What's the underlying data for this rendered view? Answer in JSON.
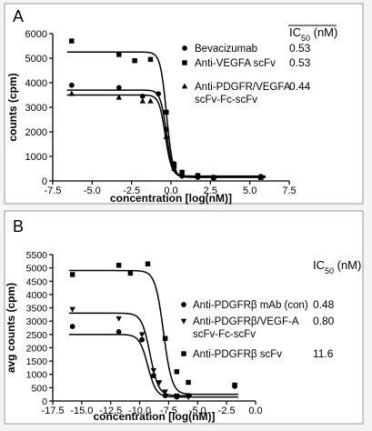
{
  "chart_data": [
    {
      "type": "scatter",
      "panel_label": "A",
      "xlabel": "concentration [log(nM)]",
      "ylabel": "counts (cpm)",
      "xlim": [
        -7.5,
        7.5
      ],
      "ylim": [
        0,
        6000
      ],
      "xticks": [
        -7.5,
        -5.0,
        -2.5,
        0.0,
        2.5,
        5.0,
        7.5
      ],
      "xtick_labels": [
        "-7.5",
        "-5.0",
        "-2.5",
        "0.0",
        "2.5",
        "5.0",
        "7.5"
      ],
      "yticks": [
        0,
        1000,
        2000,
        3000,
        4000,
        5000,
        6000
      ],
      "ytick_labels": [
        "0",
        "1000",
        "2000",
        "3000",
        "4000",
        "5000",
        "6000"
      ],
      "ic50_header": "IC",
      "ic50_sub": "50",
      "ic50_unit": " (nM)",
      "legend_placement": "top-right",
      "grid": false,
      "series": [
        {
          "name": "Bevacizumab",
          "legend_lines": [
            "Bevacizumab"
          ],
          "ic50": "0.53",
          "marker": "circle",
          "fit": {
            "top": 3700,
            "bottom": 150,
            "logic50": -0.28,
            "hill": 2.2
          },
          "x": [
            -6.3,
            -3.3,
            -1.8,
            -0.8,
            -0.3,
            0.2,
            0.7,
            1.7,
            2.7,
            5.7
          ],
          "y": [
            3900,
            3800,
            3450,
            3550,
            2100,
            700,
            200,
            150,
            120,
            180
          ]
        },
        {
          "name": "Anti-VEGFA scFv",
          "legend_lines": [
            "Anti-VEGFA scFv"
          ],
          "ic50": "0.53",
          "marker": "square",
          "fit": {
            "top": 5250,
            "bottom": 150,
            "logic50": -0.28,
            "hill": 2.2
          },
          "x": [
            -6.3,
            -3.3,
            -2.3,
            -1.3,
            -0.3,
            0.2,
            0.7,
            1.7,
            2.7,
            5.7
          ],
          "y": [
            5700,
            5150,
            4900,
            4950,
            2800,
            600,
            350,
            220,
            140,
            140
          ]
        },
        {
          "name": "Anti-PDGFR/VEGFA scFv-Fc-scFv",
          "legend_lines": [
            "Anti-PDGFR/VEGFA",
            "scFv-Fc-scFv"
          ],
          "ic50": "0.44",
          "marker": "triangle-up",
          "fit": {
            "top": 3500,
            "bottom": 200,
            "logic50": -0.36,
            "hill": 2.2
          },
          "x": [
            -6.3,
            -3.3,
            -1.8,
            -1.3,
            -0.3,
            0.2,
            0.7,
            1.7,
            2.7,
            5.7
          ],
          "y": [
            3550,
            3400,
            3250,
            3250,
            1800,
            500,
            350,
            200,
            150,
            150
          ]
        }
      ]
    },
    {
      "type": "scatter",
      "panel_label": "B",
      "xlabel": "concentration [log(nM)]",
      "ylabel": "avg counts (cpm)",
      "xlim": [
        -17.5,
        0.0
      ],
      "ylim": [
        0,
        5500
      ],
      "xticks": [
        -17.5,
        -15.0,
        -12.5,
        -10.0,
        -7.5,
        -5.0,
        -2.5,
        0.0
      ],
      "xtick_labels": [
        "-17.5",
        "-15.0",
        "-12.5",
        "-10.0",
        "-7.5",
        "-5.0",
        "-2.5",
        "0.0"
      ],
      "yticks": [
        0,
        500,
        1000,
        1500,
        2000,
        2500,
        3000,
        3500,
        4000,
        4500,
        5000,
        5500
      ],
      "ytick_labels": [
        "0",
        "500",
        "1000",
        "1500",
        "2000",
        "2500",
        "3000",
        "3500",
        "4000",
        "4500",
        "5000",
        "5500"
      ],
      "ic50_header": "IC",
      "ic50_sub": "50",
      "ic50_unit": " (nM)",
      "legend_placement": "right",
      "grid": false,
      "series": [
        {
          "name": "Anti-PDGFRβ mAb (con)",
          "legend_lines": [
            "Anti-PDGFRβ mAb (con)"
          ],
          "ic50": "0.48",
          "marker": "circle",
          "fit": {
            "top": 2500,
            "bottom": 150,
            "logic50": -9.3,
            "hill": 1.2
          },
          "x": [
            -15.8,
            -11.8,
            -9.8,
            -8.8,
            -7.8,
            -6.8,
            -5.8,
            -1.8
          ],
          "y": [
            2800,
            2600,
            2300,
            950,
            200,
            150,
            200,
            550
          ]
        },
        {
          "name": "Anti-PDGFRβ/VEGF-A scFv-Fc-scFv",
          "legend_lines": [
            "Anti-PDGFRβ/VEGF-A",
            "scFv-Fc-scFv"
          ],
          "ic50": "0.80",
          "marker": "triangle-down",
          "fit": {
            "top": 3300,
            "bottom": 200,
            "logic50": -9.1,
            "hill": 1.2
          },
          "x": [
            -15.8,
            -11.8,
            -9.8,
            -8.8,
            -8.3,
            -7.8,
            -6.8,
            -5.8
          ],
          "y": [
            3450,
            3100,
            2500,
            1150,
            700,
            350,
            200,
            150
          ]
        },
        {
          "name": "Anti-PDGFRβ scFv",
          "legend_lines": [
            "Anti-PDGFRβ scFv"
          ],
          "ic50": "11.6",
          "marker": "square",
          "fit": {
            "top": 4900,
            "bottom": 250,
            "logic50": -7.94,
            "hill": 1.2
          },
          "x": [
            -15.8,
            -11.8,
            -10.8,
            -9.3,
            -7.8,
            -6.8,
            -5.8,
            -1.8
          ],
          "y": [
            4750,
            5100,
            4800,
            5150,
            2350,
            1100,
            700,
            600
          ]
        }
      ]
    }
  ]
}
